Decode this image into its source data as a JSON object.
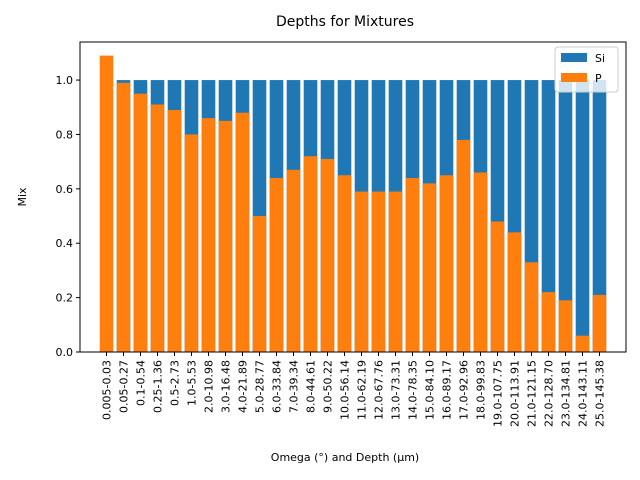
{
  "chart_data": {
    "type": "bar",
    "stacked": false,
    "title": "Depths for Mixtures",
    "xlabel": "Omega (°) and Depth (µm)",
    "ylabel": "Mix",
    "ylim": [
      0,
      1.14
    ],
    "yticks": [
      "0.0",
      "0.2",
      "0.4",
      "0.6",
      "0.8",
      "1.0"
    ],
    "categories": [
      "0.005-0.03",
      "0.05-0.27",
      "0.1-0.54",
      "0.25-1.36",
      "0.5-2.73",
      "1.0-5.53",
      "2.0-10.98",
      "3.0-16.48",
      "4.0-21.89",
      "5.0-28.77",
      "6.0-33.84",
      "7.0-39.34",
      "8.0-44.61",
      "9.0-50.22",
      "10.0-56.14",
      "11.0-62.19",
      "12.0-67.76",
      "13.0-73.31",
      "14.0-78.35",
      "15.0-84.10",
      "16.0-89.17",
      "17.0-92.96",
      "18.0-99.83",
      "19.0-107.75",
      "20.0-113.91",
      "21.0-121.15",
      "22.0-128.70",
      "23.0-134.81",
      "24.0-143.11",
      "25.0-145.38"
    ],
    "series": [
      {
        "name": "Si",
        "color": "#1f77b4",
        "values": [
          0,
          1.0,
          1.0,
          1.0,
          1.0,
          1.0,
          1.0,
          1.0,
          1.0,
          1.0,
          1.0,
          1.0,
          1.0,
          1.0,
          1.0,
          1.0,
          1.0,
          1.0,
          1.0,
          1.0,
          1.0,
          1.0,
          1.0,
          1.0,
          1.0,
          1.0,
          1.0,
          1.0,
          1.0,
          1.0
        ]
      },
      {
        "name": "P",
        "color": "#ff7f0e",
        "values": [
          1.09,
          0.99,
          0.95,
          0.91,
          0.89,
          0.8,
          0.86,
          0.85,
          0.88,
          0.5,
          0.64,
          0.67,
          0.72,
          0.71,
          0.65,
          0.59,
          0.59,
          0.59,
          0.64,
          0.62,
          0.65,
          0.78,
          0.66,
          0.48,
          0.44,
          0.33,
          0.22,
          0.19,
          0.06,
          0.21
        ]
      }
    ],
    "legend_position": "top-right",
    "grid": false
  }
}
